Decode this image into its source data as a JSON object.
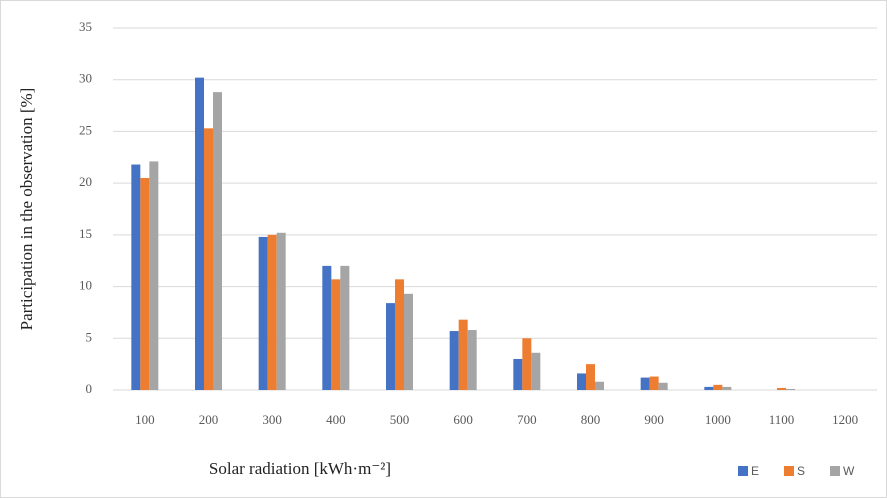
{
  "chart_data": {
    "type": "bar",
    "x_label": "Solar radiation [kWh·m⁻²]",
    "y_label": "Participation in the observation [%]",
    "categories": [
      "100",
      "200",
      "300",
      "400",
      "500",
      "600",
      "700",
      "800",
      "900",
      "1000",
      "1100",
      "1200"
    ],
    "series": [
      {
        "name": "E",
        "color": "#4472c4",
        "values": [
          21.8,
          30.2,
          14.8,
          12.0,
          8.4,
          5.7,
          3.0,
          1.6,
          1.2,
          0.3,
          0,
          0
        ]
      },
      {
        "name": "S",
        "color": "#ed7d31",
        "values": [
          20.5,
          25.3,
          15.0,
          10.7,
          10.7,
          6.8,
          5.0,
          2.5,
          1.3,
          0.5,
          0.2,
          0
        ]
      },
      {
        "name": "W",
        "color": "#a5a5a5",
        "values": [
          22.1,
          28.8,
          15.2,
          12.0,
          9.3,
          5.8,
          3.6,
          0.8,
          0.7,
          0.3,
          0.1,
          0
        ]
      }
    ],
    "ylim": [
      0,
      35
    ],
    "yticks": [
      0,
      5,
      10,
      15,
      20,
      25,
      30,
      35
    ],
    "grid": true,
    "legend": "bottom-right"
  }
}
